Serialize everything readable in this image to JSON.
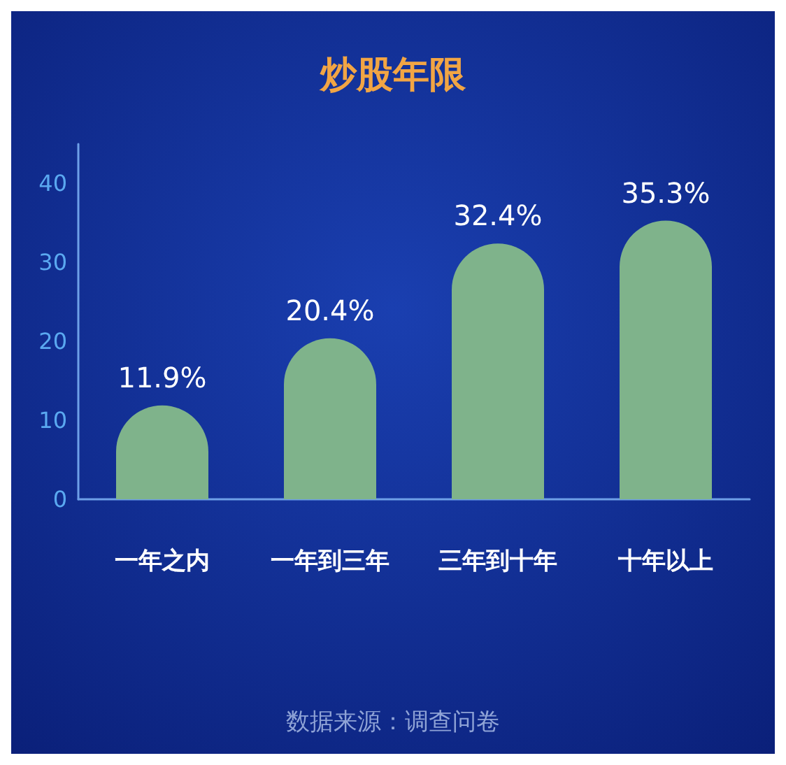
{
  "chart_data": {
    "type": "bar",
    "title": "炒股年限",
    "categories": [
      "一年之内",
      "一年到三年",
      "三年到十年",
      "十年以上"
    ],
    "values": [
      11.9,
      20.4,
      32.4,
      35.3
    ],
    "value_labels": [
      "11.9%",
      "20.4%",
      "32.4%",
      "35.3%"
    ],
    "color": "#7fb38b",
    "ylim": [
      0,
      45
    ],
    "yticks": [
      0,
      10,
      20,
      30,
      40
    ],
    "grid": false,
    "annotations": [
      "数据来源：调查问卷"
    ]
  }
}
